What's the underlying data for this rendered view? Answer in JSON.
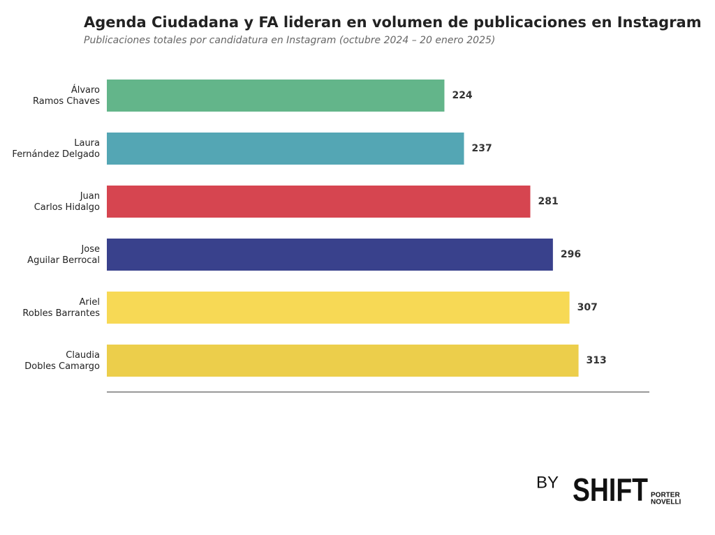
{
  "chart_data": {
    "type": "barh",
    "title": "Agenda Ciudadana y FA lideran en volumen de publicaciones en Instagram",
    "subtitle": "Publicaciones totales por candidatura en Instagram (octubre 2024 – 20 enero 2025)",
    "categories": [
      "Álvaro\nRamos Chaves",
      "Laura\nFernández Delgado",
      "Juan\nCarlos Hidalgo",
      "Jose\nAguilar Berrocal",
      "Ariel\nRobles Barrantes",
      "Claudia\nDobles Camargo"
    ],
    "values": [
      224,
      237,
      281,
      296,
      307,
      313
    ],
    "colors": [
      "#63b58a",
      "#54a6b4",
      "#d64550",
      "#39418c",
      "#f7d955",
      "#ecce4b"
    ],
    "xlim": [
      0,
      360
    ]
  },
  "logo": {
    "by": "BY",
    "brand": "SHIFT",
    "sub1": "PORTER",
    "sub2": "NOVELLI"
  }
}
